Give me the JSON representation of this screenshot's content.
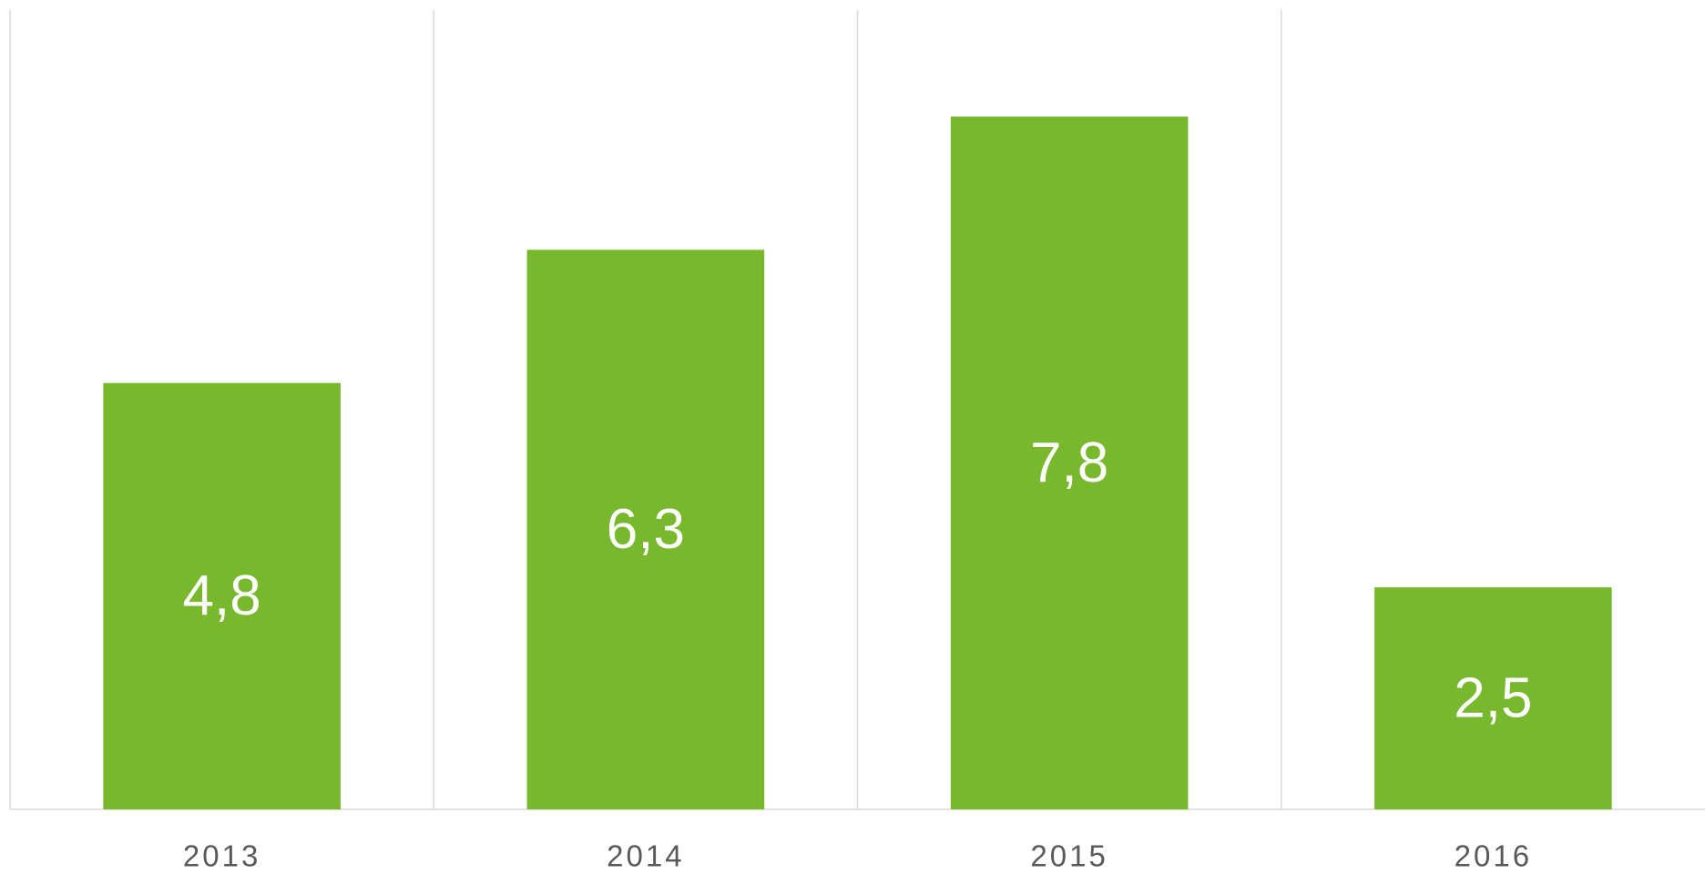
{
  "chart_data": {
    "type": "bar",
    "categories": [
      "2013",
      "2014",
      "2015",
      "2016"
    ],
    "values": [
      4.8,
      6.3,
      7.8,
      2.5
    ],
    "value_labels": [
      "4,8",
      "6,3",
      "7,8",
      "2,5"
    ],
    "color": "#77b82c",
    "ylim": [
      0,
      9
    ]
  }
}
